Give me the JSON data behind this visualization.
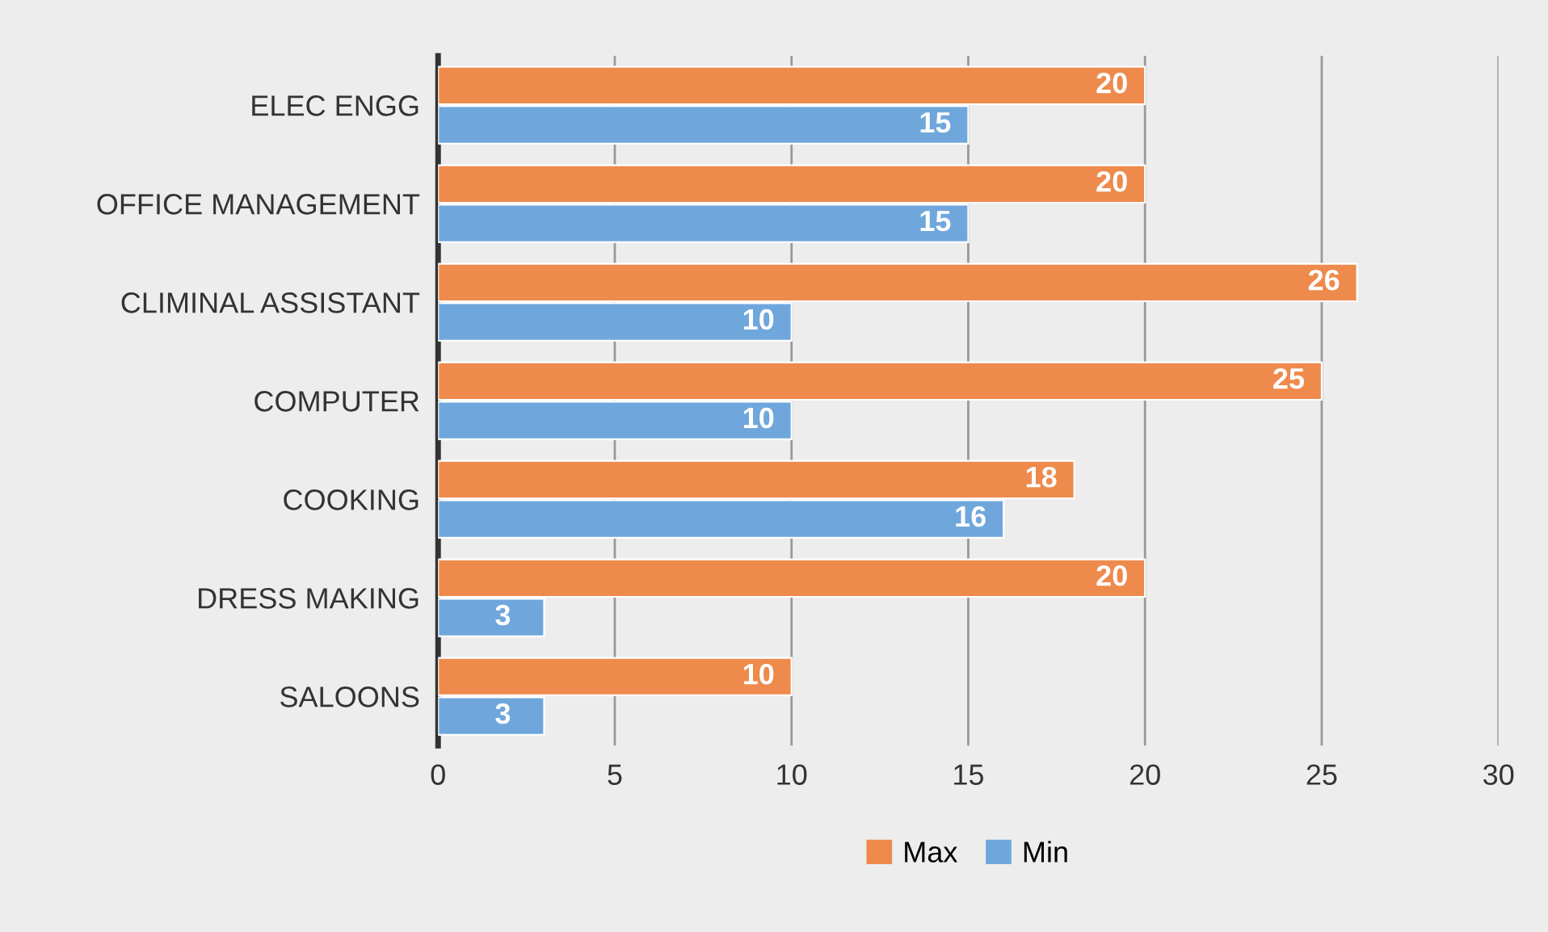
{
  "chart_data": {
    "type": "bar",
    "orientation": "horizontal",
    "categories": [
      "ELEC ENGG",
      "OFFICE MANAGEMENT",
      "CLIMINAL ASSISTANT",
      "COMPUTER",
      "COOKING",
      "DRESS MAKING",
      "SALOONS"
    ],
    "series": [
      {
        "name": "Max",
        "color": "#ee8a4c",
        "values": [
          20,
          20,
          26,
          25,
          18,
          20,
          10
        ]
      },
      {
        "name": "Min",
        "color": "#6fa7dc",
        "values": [
          15,
          15,
          10,
          10,
          16,
          3,
          3
        ]
      }
    ],
    "xlim": [
      0,
      30
    ],
    "xticks": [
      0,
      5,
      10,
      15,
      20,
      25,
      30
    ],
    "grid": "x",
    "legend": "bottom",
    "data_labels": true
  }
}
